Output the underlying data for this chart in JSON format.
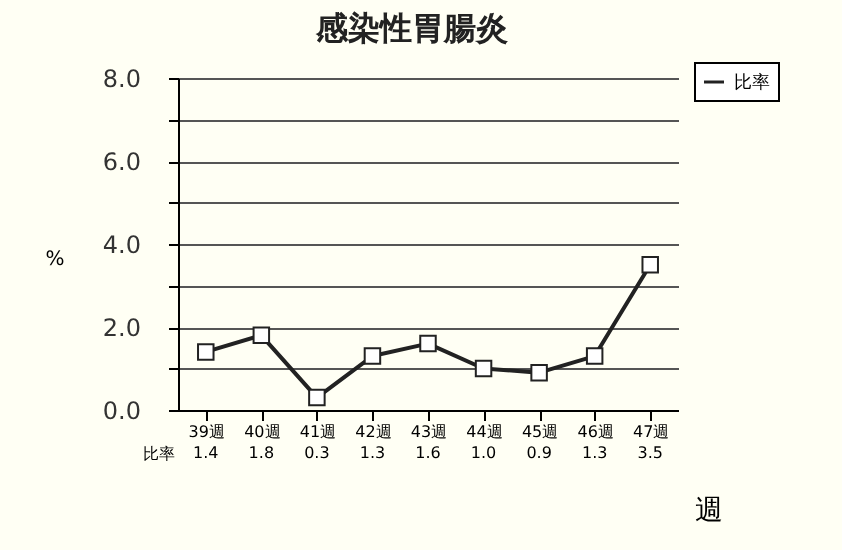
{
  "chart_data": {
    "type": "line",
    "title": "感染性胃腸炎",
    "xlabel": "週",
    "ylabel": "%",
    "categories": [
      "39週",
      "40週",
      "41週",
      "42週",
      "43週",
      "44週",
      "45週",
      "46週",
      "47週"
    ],
    "series": [
      {
        "name": "比率",
        "color": "#222222",
        "values": [
          1.4,
          1.8,
          0.3,
          1.3,
          1.6,
          1.0,
          0.9,
          1.3,
          3.5
        ],
        "value_labels": [
          "1.4",
          "1.8",
          "0.3",
          "1.3",
          "1.6",
          "1.0",
          "0.9",
          "1.3",
          "3.5"
        ]
      }
    ],
    "ylim": [
      0,
      8
    ],
    "yticks": [
      {
        "value": 0,
        "label": "0.0"
      },
      {
        "value": 1,
        "label": null
      },
      {
        "value": 2,
        "label": "2.0"
      },
      {
        "value": 3,
        "label": null
      },
      {
        "value": 4,
        "label": "4.0"
      },
      {
        "value": 5,
        "label": null
      },
      {
        "value": 6,
        "label": "6.0"
      },
      {
        "value": 7,
        "label": null
      },
      {
        "value": 8,
        "label": "8.0"
      }
    ],
    "grid": "y",
    "legend": "top right",
    "marker": "square",
    "line_style": "solid"
  }
}
